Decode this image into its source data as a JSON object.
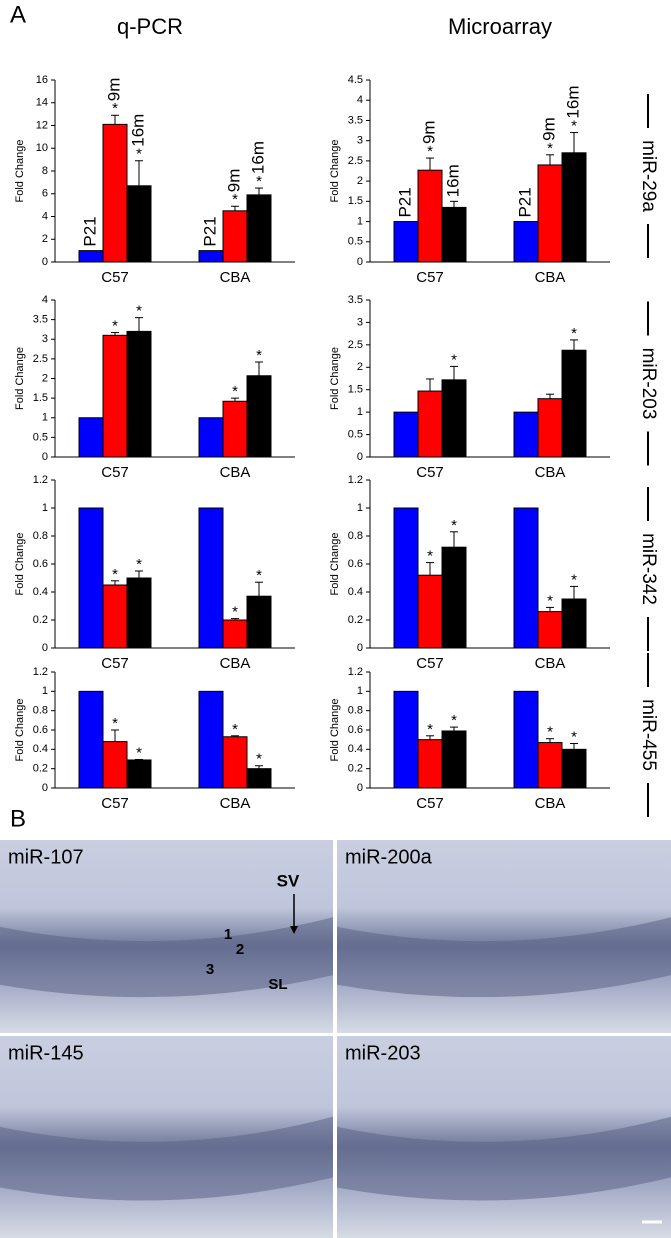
{
  "panel_a": {
    "label": "A",
    "columns": [
      "q-PCR",
      "Microarray"
    ],
    "rows": [
      "miR-29a",
      "miR-203",
      "miR-342",
      "miR-455"
    ]
  },
  "chart_data": [
    {
      "type": "bar",
      "ylabel": "Fold Change",
      "categories": [
        "C57",
        "CBA"
      ],
      "ylim": [
        0,
        16
      ],
      "yticks": [
        0,
        2,
        4,
        6,
        8,
        10,
        12,
        14,
        16
      ],
      "series": [
        {
          "name": "P21",
          "color": "#0000ff",
          "values": [
            1,
            1
          ]
        },
        {
          "name": "9m",
          "color": "#ff0000",
          "values": [
            12.1,
            4.5
          ],
          "errors": [
            0.8,
            0.4
          ],
          "markers": [
            "*",
            "*"
          ]
        },
        {
          "name": "16m",
          "color": "#000000",
          "values": [
            6.7,
            5.9
          ],
          "errors": [
            2.2,
            0.6
          ],
          "markers": [
            "*",
            "*"
          ]
        }
      ]
    },
    {
      "type": "bar",
      "ylabel": "Fold Change",
      "categories": [
        "C57",
        "CBA"
      ],
      "ylim": [
        0,
        4.5
      ],
      "yticks": [
        0,
        0.5,
        1,
        1.5,
        2,
        2.5,
        3,
        3.5,
        4,
        4.5
      ],
      "series": [
        {
          "name": "P21",
          "color": "#0000ff",
          "values": [
            1,
            1
          ]
        },
        {
          "name": "9m",
          "color": "#ff0000",
          "values": [
            2.27,
            2.4
          ],
          "errors": [
            0.3,
            0.25
          ],
          "markers": [
            "*",
            "*"
          ]
        },
        {
          "name": "16m",
          "color": "#000000",
          "values": [
            1.35,
            2.7
          ],
          "errors": [
            0.15,
            0.5
          ],
          "markers": [
            null,
            "*"
          ]
        }
      ]
    },
    {
      "type": "bar",
      "ylabel": "Fold Change",
      "categories": [
        "C57",
        "CBA"
      ],
      "ylim": [
        0,
        4
      ],
      "yticks": [
        0,
        0.5,
        1,
        1.5,
        2,
        2.5,
        3,
        3.5,
        4
      ],
      "series": [
        {
          "color": "#0000ff",
          "values": [
            1,
            1
          ]
        },
        {
          "color": "#ff0000",
          "values": [
            3.1,
            1.42
          ],
          "errors": [
            0.07,
            0.08
          ],
          "markers": [
            "*",
            "*"
          ]
        },
        {
          "color": "#000000",
          "values": [
            3.2,
            2.07
          ],
          "errors": [
            0.35,
            0.35
          ],
          "markers": [
            "*",
            "*"
          ]
        }
      ]
    },
    {
      "type": "bar",
      "ylabel": "Fold Change",
      "categories": [
        "C57",
        "CBA"
      ],
      "ylim": [
        0,
        3.5
      ],
      "yticks": [
        0,
        0.5,
        1,
        1.5,
        2,
        2.5,
        3,
        3.5
      ],
      "series": [
        {
          "color": "#0000ff",
          "values": [
            1,
            1
          ]
        },
        {
          "color": "#ff0000",
          "values": [
            1.47,
            1.3
          ],
          "errors": [
            0.27,
            0.1
          ],
          "markers": [
            null,
            null
          ]
        },
        {
          "color": "#000000",
          "values": [
            1.72,
            2.38
          ],
          "errors": [
            0.3,
            0.23
          ],
          "markers": [
            "*",
            "*"
          ]
        }
      ]
    },
    {
      "type": "bar",
      "ylabel": "Fold Change",
      "categories": [
        "C57",
        "CBA"
      ],
      "ylim": [
        0,
        1.2
      ],
      "yticks": [
        0,
        0.2,
        0.4,
        0.6,
        0.8,
        1,
        1.2
      ],
      "series": [
        {
          "color": "#0000ff",
          "values": [
            1,
            1
          ]
        },
        {
          "color": "#ff0000",
          "values": [
            0.45,
            0.2
          ],
          "errors": [
            0.03,
            0.01
          ],
          "markers": [
            "*",
            "*"
          ]
        },
        {
          "color": "#000000",
          "values": [
            0.5,
            0.37
          ],
          "errors": [
            0.05,
            0.1
          ],
          "markers": [
            "*",
            "*"
          ]
        }
      ]
    },
    {
      "type": "bar",
      "ylabel": "Fold Change",
      "categories": [
        "C57",
        "CBA"
      ],
      "ylim": [
        0,
        1.2
      ],
      "yticks": [
        0,
        0.2,
        0.4,
        0.6,
        0.8,
        1,
        1.2
      ],
      "series": [
        {
          "color": "#0000ff",
          "values": [
            1,
            1
          ]
        },
        {
          "color": "#ff0000",
          "values": [
            0.52,
            0.26
          ],
          "errors": [
            0.09,
            0.03
          ],
          "markers": [
            "*",
            "*"
          ]
        },
        {
          "color": "#000000",
          "values": [
            0.72,
            0.35
          ],
          "errors": [
            0.11,
            0.09
          ],
          "markers": [
            "*",
            "*"
          ]
        }
      ]
    },
    {
      "type": "bar",
      "ylabel": "Fold Change",
      "categories": [
        "C57",
        "CBA"
      ],
      "ylim": [
        0,
        1.2
      ],
      "yticks": [
        0,
        0.2,
        0.4,
        0.6,
        0.8,
        1,
        1.2
      ],
      "series": [
        {
          "color": "#0000ff",
          "values": [
            1,
            1
          ]
        },
        {
          "color": "#ff0000",
          "values": [
            0.48,
            0.53
          ],
          "errors": [
            0.12,
            0.01
          ],
          "markers": [
            "*",
            "*"
          ]
        },
        {
          "color": "#000000",
          "values": [
            0.29,
            0.2
          ],
          "errors": [
            0.005,
            0.03
          ],
          "markers": [
            "*",
            "*"
          ]
        }
      ]
    },
    {
      "type": "bar",
      "ylabel": "Fold Change",
      "categories": [
        "C57",
        "CBA"
      ],
      "ylim": [
        0,
        1.2
      ],
      "yticks": [
        0,
        0.2,
        0.4,
        0.6,
        0.8,
        1,
        1.2
      ],
      "series": [
        {
          "color": "#0000ff",
          "values": [
            1,
            1
          ]
        },
        {
          "color": "#ff0000",
          "values": [
            0.5,
            0.47
          ],
          "errors": [
            0.04,
            0.04
          ],
          "markers": [
            "*",
            "*"
          ]
        },
        {
          "color": "#000000",
          "values": [
            0.59,
            0.4
          ],
          "errors": [
            0.04,
            0.06
          ],
          "markers": [
            "*",
            "*"
          ]
        }
      ]
    }
  ],
  "panel_b": {
    "label": "B",
    "images": [
      {
        "title": "miR-107",
        "annotations": [
          "SV",
          "1",
          "2",
          "3",
          "SL"
        ]
      },
      {
        "title": "miR-200a"
      },
      {
        "title": "miR-145"
      },
      {
        "title": "miR-203"
      }
    ]
  }
}
